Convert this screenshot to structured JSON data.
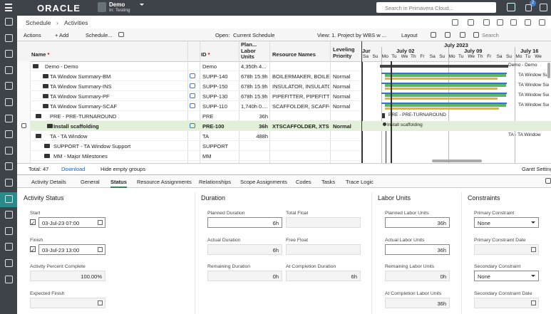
{
  "header": {
    "logo": "ORACLE",
    "project": "Demo",
    "workspace": "In: Testing",
    "search_placeholder": "Search in Primavera Cloud...",
    "notification_count": "2"
  },
  "breadcrumb": {
    "parent": "Schedule",
    "current": "Activities"
  },
  "toolbar": {
    "actions": "Actions",
    "add": "+ Add",
    "schedule": "Schedule...",
    "open_label": "Open:",
    "open_value": "Current Schedule",
    "view": "View: 1. Project by WBS w ...",
    "layout": "Layout",
    "search_placeholder": "Search"
  },
  "table": {
    "columns": [
      {
        "label": "Name",
        "required": "*"
      },
      {
        "label": "ID",
        "required": "*"
      },
      {
        "label": "Plan... Labor Units"
      },
      {
        "label": "Resource Names"
      },
      {
        "label": "Leveling Priority"
      }
    ],
    "rows": [
      {
        "name": "Demo - Demo",
        "id": "Demo",
        "labor": "4,350h 4..."
      },
      {
        "name": "TA Window Summary-BM",
        "id": "SUPP-140",
        "labor": "678h 15.9h",
        "resources": "BOILERMAKER, BOILE...",
        "priority": "Normal"
      },
      {
        "name": "TA Window Summary-INS",
        "id": "SUPP-150",
        "labor": "678h 15.9h",
        "resources": "INSULATOR, INSULATO...",
        "priority": "Normal"
      },
      {
        "name": "TA Window Summary-PF",
        "id": "SUPP-130",
        "labor": "678h 15.9h",
        "resources": "PIPEFITTER, PIPEFITTER",
        "priority": "Normal"
      },
      {
        "name": "TA Window Summary-SCAF",
        "id": "SUPP-110",
        "labor": "1,740h 0....",
        "resources": "SCAFFOLDER, SCAFFO...",
        "priority": "Normal"
      },
      {
        "name": "PRE - PRE-TURNAROUND",
        "id": "PRE",
        "labor": "36h"
      },
      {
        "name": "Install scaffolding",
        "id": "PRE-100",
        "labor": "36h",
        "resources": "XTSCAFFOLDER, XTS...",
        "priority": "Normal"
      },
      {
        "name": "TA - TA Window",
        "id": "TA",
        "labor": "488h"
      },
      {
        "name": "SUPPORT - TA Window Support",
        "id": "SUPPORT"
      },
      {
        "name": "MM - Major Milestones",
        "id": "MM"
      }
    ]
  },
  "gantt": {
    "month": "July 2023",
    "weeks": [
      "Jur",
      "July 02",
      "July 09",
      "July 16"
    ],
    "days": [
      "Sa",
      "Su",
      "Mo",
      "Tu",
      "We",
      "Th",
      "Fr",
      "Sa",
      "Su",
      "Mo",
      "Tu",
      "We",
      "Th",
      "Fr",
      "Sa",
      "Su",
      "Mo",
      "Tu",
      "We"
    ],
    "bar_labels": [
      "Demo - Demo",
      "TA Window Summary-",
      "TA Window Summary-",
      "TA Window Summary-",
      "TA Window Summary-",
      "PRE - PRE-TURNAROUND",
      "Install scaffolding",
      "TA - TA Window"
    ]
  },
  "footer": {
    "total": "Total: 47",
    "download": "Download",
    "hide_empty": "Hide empty groups",
    "gantt_settings": "Gantt Settings"
  },
  "tabs": {
    "panel": "Activity Details",
    "items": [
      "General",
      "Status",
      "Resource Assignments",
      "Relationships",
      "Scope Assignments",
      "Codes",
      "Tasks",
      "Trace Logic"
    ]
  },
  "details": [
    {
      "title": "Activity Status",
      "fields": [
        {
          "label": "Start",
          "value": "03-Jul-23 07:00"
        },
        {
          "label": "Finish",
          "value": "03-Jul-23 13:00"
        },
        {
          "label": "Activity Percent Complete",
          "value": "100.00%"
        },
        {
          "label": "Expected Finish"
        }
      ]
    },
    {
      "title": "Duration",
      "fields": [
        {
          "label": "Planned Duration",
          "value": "6h"
        },
        {
          "label": "Total Float"
        },
        {
          "label": "Actual Duration",
          "value": "6h"
        },
        {
          "label": "Free Float"
        },
        {
          "label": "Remaining Duration",
          "value": "0h"
        },
        {
          "label": "At Completion Duration",
          "value": "6h"
        }
      ]
    },
    {
      "title": "Labor Units",
      "fields": [
        {
          "label": "Planned Labor Units",
          "value": "36h"
        },
        {
          "label": "Actual Labor Units",
          "value": "36h"
        },
        {
          "label": "Remaining Labor Units",
          "value": "0h"
        },
        {
          "label": "At Completion Labor Units",
          "value": "36h"
        }
      ]
    },
    {
      "title": "Constraints",
      "fields": [
        {
          "label": "Primary Constraint",
          "value": "None"
        },
        {
          "label": "Primary Constraint Date"
        },
        {
          "label": "Secondary Constraint",
          "value": "None"
        },
        {
          "label": "Secondary Constraint Date"
        }
      ]
    }
  ]
}
